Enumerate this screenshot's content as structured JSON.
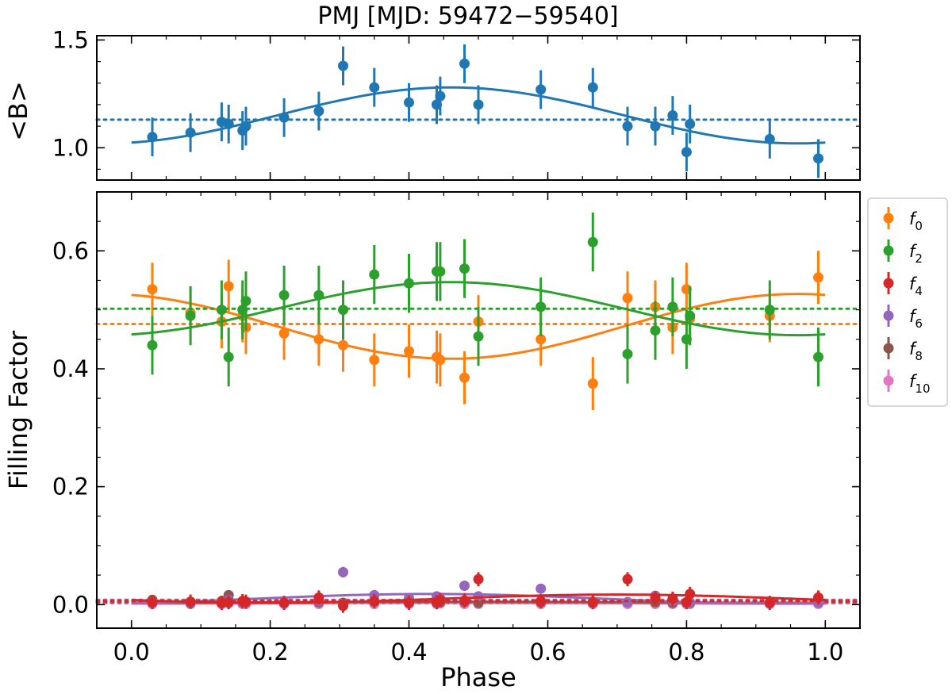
{
  "chart_data": [
    {
      "type": "scatter",
      "panel": "top",
      "title": "PMJ [MJD: 59472−59540]",
      "xlabel": "",
      "ylabel": "<B>",
      "xlim": [
        -0.05,
        1.05
      ],
      "ylim": [
        0.85,
        1.52
      ],
      "x_ticks": [
        0.0,
        0.2,
        0.4,
        0.6,
        0.8,
        1.0
      ],
      "y_ticks": [
        1.0,
        1.5
      ],
      "y_tick_labels": [
        "1.0",
        "1.5"
      ],
      "series": [
        {
          "name": "<B>",
          "color": "#1f77b4",
          "mean_line": 1.13,
          "fit": {
            "mean": 1.15,
            "amplitude": 0.13,
            "phase_of_max": 0.46
          },
          "x": [
            0.03,
            0.085,
            0.13,
            0.14,
            0.16,
            0.165,
            0.22,
            0.27,
            0.305,
            0.35,
            0.4,
            0.44,
            0.445,
            0.48,
            0.5,
            0.59,
            0.665,
            0.715,
            0.755,
            0.78,
            0.8,
            0.805,
            0.92,
            0.99
          ],
          "y": [
            1.05,
            1.07,
            1.12,
            1.11,
            1.08,
            1.1,
            1.14,
            1.17,
            1.38,
            1.28,
            1.21,
            1.2,
            1.24,
            1.39,
            1.2,
            1.27,
            1.28,
            1.1,
            1.1,
            1.15,
            0.98,
            1.11,
            1.04,
            0.95
          ],
          "err": [
            0.09,
            0.09,
            0.09,
            0.09,
            0.09,
            0.09,
            0.09,
            0.09,
            0.09,
            0.09,
            0.09,
            0.09,
            0.09,
            0.09,
            0.09,
            0.09,
            0.09,
            0.09,
            0.09,
            0.09,
            0.09,
            0.09,
            0.09,
            0.09
          ]
        }
      ]
    },
    {
      "type": "scatter",
      "panel": "bottom",
      "title": "",
      "xlabel": "Phase",
      "ylabel": "Filling Factor",
      "xlim": [
        -0.05,
        1.05
      ],
      "ylim": [
        -0.04,
        0.7
      ],
      "x_ticks": [
        0.0,
        0.2,
        0.4,
        0.6,
        0.8,
        1.0
      ],
      "x_tick_labels": [
        "0.0",
        "0.2",
        "0.4",
        "0.6",
        "0.8",
        "1.0"
      ],
      "y_ticks": [
        0.0,
        0.2,
        0.4,
        0.6
      ],
      "y_tick_labels": [
        "0.0",
        "0.2",
        "0.4",
        "0.6"
      ],
      "legend_position": "right-outside-top",
      "series": [
        {
          "name": "f",
          "subscript": "0",
          "color": "#ff7f0e",
          "mean_line": 0.476,
          "fit": {
            "mean": 0.472,
            "amplitude": -0.055,
            "phase_of_max": 0.46
          },
          "x": [
            0.03,
            0.085,
            0.13,
            0.14,
            0.16,
            0.165,
            0.22,
            0.27,
            0.305,
            0.35,
            0.4,
            0.44,
            0.445,
            0.48,
            0.5,
            0.59,
            0.665,
            0.715,
            0.755,
            0.78,
            0.8,
            0.805,
            0.92,
            0.99
          ],
          "y": [
            0.535,
            0.495,
            0.48,
            0.54,
            0.49,
            0.47,
            0.46,
            0.45,
            0.44,
            0.415,
            0.43,
            0.42,
            0.415,
            0.385,
            0.48,
            0.45,
            0.375,
            0.52,
            0.505,
            0.47,
            0.535,
            0.485,
            0.49,
            0.555
          ],
          "err": [
            0.045,
            0.045,
            0.045,
            0.045,
            0.045,
            0.045,
            0.045,
            0.045,
            0.045,
            0.045,
            0.045,
            0.045,
            0.045,
            0.045,
            0.045,
            0.045,
            0.045,
            0.045,
            0.045,
            0.045,
            0.045,
            0.045,
            0.045,
            0.045
          ]
        },
        {
          "name": "f",
          "subscript": "2",
          "color": "#2ca02c",
          "mean_line": 0.502,
          "fit": {
            "mean": 0.502,
            "amplitude": 0.045,
            "phase_of_max": 0.46
          },
          "x": [
            0.03,
            0.085,
            0.13,
            0.14,
            0.16,
            0.165,
            0.22,
            0.27,
            0.305,
            0.35,
            0.4,
            0.44,
            0.445,
            0.48,
            0.5,
            0.59,
            0.665,
            0.715,
            0.755,
            0.78,
            0.8,
            0.805,
            0.92,
            0.99
          ],
          "y": [
            0.44,
            0.49,
            0.5,
            0.42,
            0.5,
            0.515,
            0.525,
            0.525,
            0.5,
            0.56,
            0.545,
            0.565,
            0.565,
            0.57,
            0.455,
            0.505,
            0.615,
            0.425,
            0.465,
            0.505,
            0.45,
            0.49,
            0.5,
            0.42
          ],
          "err": [
            0.05,
            0.05,
            0.05,
            0.05,
            0.05,
            0.05,
            0.05,
            0.05,
            0.05,
            0.05,
            0.05,
            0.05,
            0.05,
            0.05,
            0.05,
            0.05,
            0.05,
            0.05,
            0.05,
            0.05,
            0.05,
            0.05,
            0.05,
            0.05
          ]
        },
        {
          "name": "f",
          "subscript": "4",
          "color": "#d62728",
          "mean_line": 0.006,
          "fit": {
            "mean": 0.01,
            "amplitude": 0.007,
            "phase_of_max": 0.7
          },
          "x": [
            0.03,
            0.085,
            0.13,
            0.14,
            0.16,
            0.165,
            0.22,
            0.27,
            0.305,
            0.35,
            0.4,
            0.44,
            0.445,
            0.48,
            0.5,
            0.59,
            0.665,
            0.715,
            0.755,
            0.78,
            0.8,
            0.805,
            0.92,
            0.99
          ],
          "y": [
            0.004,
            0.005,
            0.003,
            0.004,
            0.006,
            0.005,
            0.003,
            0.012,
            -0.002,
            0.006,
            0.003,
            0.004,
            0.008,
            0.007,
            0.043,
            0.006,
            0.004,
            0.043,
            0.011,
            0.01,
            0.004,
            0.018,
            0.003,
            0.012
          ],
          "err": [
            0.012,
            0.012,
            0.012,
            0.012,
            0.012,
            0.012,
            0.012,
            0.012,
            0.012,
            0.012,
            0.012,
            0.012,
            0.012,
            0.012,
            0.012,
            0.012,
            0.012,
            0.012,
            0.012,
            0.012,
            0.012,
            0.012,
            0.012,
            0.012
          ]
        },
        {
          "name": "f",
          "subscript": "6",
          "color": "#9467bd",
          "mean_line": 0.008,
          "fit": {
            "mean": 0.01,
            "amplitude": 0.008,
            "phase_of_max": 0.43
          },
          "x": [
            0.03,
            0.085,
            0.13,
            0.14,
            0.16,
            0.165,
            0.22,
            0.27,
            0.305,
            0.35,
            0.4,
            0.44,
            0.445,
            0.48,
            0.5,
            0.59,
            0.665,
            0.715,
            0.755,
            0.78,
            0.8,
            0.805,
            0.92,
            0.99
          ],
          "y": [
            0.003,
            0.002,
            0.002,
            0.008,
            0.003,
            0.004,
            0.003,
            0.006,
            0.055,
            0.016,
            0.011,
            0.014,
            0.01,
            0.032,
            0.014,
            0.027,
            0.005,
            0.004,
            0.015,
            0.006,
            0.003,
            0.004,
            0.002,
            0.003
          ],
          "err": [
            0.006,
            0.006,
            0.006,
            0.006,
            0.006,
            0.006,
            0.006,
            0.006,
            0.009,
            0.006,
            0.006,
            0.006,
            0.006,
            0.006,
            0.006,
            0.006,
            0.006,
            0.006,
            0.006,
            0.006,
            0.006,
            0.006,
            0.006,
            0.006
          ]
        },
        {
          "name": "f",
          "subscript": "8",
          "color": "#8c564b",
          "mean_line": 0.004,
          "fit": {
            "mean": 0.004,
            "amplitude": 0.001,
            "phase_of_max": 0.46
          },
          "x": [
            0.03,
            0.085,
            0.13,
            0.14,
            0.16,
            0.165,
            0.22,
            0.27,
            0.305,
            0.35,
            0.4,
            0.44,
            0.445,
            0.48,
            0.5,
            0.59,
            0.665,
            0.715,
            0.755,
            0.78,
            0.8,
            0.805,
            0.92,
            0.99
          ],
          "y": [
            0.008,
            0.004,
            0.006,
            0.016,
            0.005,
            0.004,
            0.003,
            0.004,
            0.003,
            0.005,
            0.004,
            0.003,
            0.004,
            0.005,
            0.003,
            0.004,
            0.003,
            0.004,
            0.004,
            0.003,
            0.004,
            0.003,
            0.004,
            0.005
          ],
          "err": [
            0.005,
            0.005,
            0.005,
            0.005,
            0.005,
            0.005,
            0.005,
            0.005,
            0.005,
            0.005,
            0.005,
            0.005,
            0.005,
            0.005,
            0.005,
            0.005,
            0.005,
            0.005,
            0.005,
            0.005,
            0.005,
            0.005,
            0.005,
            0.005
          ]
        },
        {
          "name": "f",
          "subscript": "10",
          "color": "#e377c2",
          "mean_line": 0.002,
          "fit": {
            "mean": 0.002,
            "amplitude": 0.0005,
            "phase_of_max": 0.46
          },
          "x": [
            0.03,
            0.085,
            0.13,
            0.14,
            0.16,
            0.165,
            0.22,
            0.27,
            0.305,
            0.35,
            0.4,
            0.44,
            0.445,
            0.48,
            0.5,
            0.59,
            0.665,
            0.715,
            0.755,
            0.78,
            0.8,
            0.805,
            0.92,
            0.99
          ],
          "y": [
            0.001,
            0.001,
            0.001,
            0.002,
            0.001,
            0.001,
            0.001,
            0.001,
            0.001,
            0.001,
            0.001,
            0.001,
            0.002,
            0.001,
            0.001,
            0.001,
            0.001,
            0.001,
            0.001,
            0.001,
            0.001,
            0.001,
            0.001,
            0.001
          ],
          "err": [
            0.003,
            0.003,
            0.003,
            0.003,
            0.003,
            0.003,
            0.003,
            0.003,
            0.003,
            0.003,
            0.003,
            0.003,
            0.003,
            0.003,
            0.003,
            0.003,
            0.003,
            0.003,
            0.003,
            0.003,
            0.003,
            0.003,
            0.003,
            0.003
          ]
        }
      ]
    }
  ]
}
